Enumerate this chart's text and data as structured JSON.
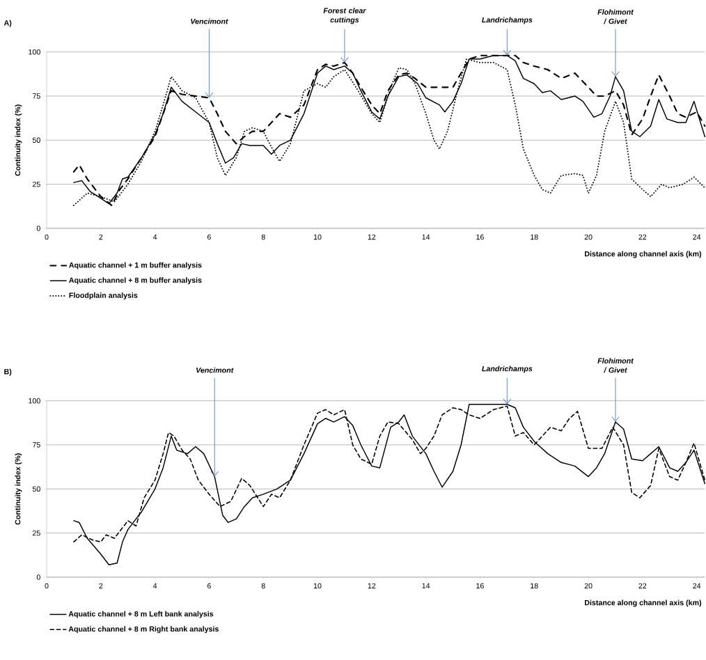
{
  "chart_data": [
    {
      "type": "line",
      "title": "A)",
      "xlabel": "Distance along channel axis (km)",
      "ylabel": "Continuity index (%)",
      "xlim": [
        0,
        24.3
      ],
      "ylim": [
        0,
        100
      ],
      "xticks": [
        0,
        2,
        4,
        6,
        8,
        10,
        12,
        14,
        16,
        18,
        20,
        22,
        24
      ],
      "yticks": [
        0,
        25,
        50,
        75,
        100
      ],
      "grid": "y",
      "legend": "bottom left",
      "marker": "none",
      "series": [
        {
          "name": "Aquatic channel + 1 m buffer analysis",
          "color": "#000000",
          "line_style": "dashdot",
          "x": [
            1,
            1.2,
            1.5,
            2,
            2.4,
            2.7,
            3,
            3.5,
            4,
            4.3,
            4.6,
            5,
            5.5,
            6,
            6.3,
            6.6,
            7,
            7.3,
            7.6,
            8,
            8.3,
            8.6,
            9,
            9.5,
            10,
            10.3,
            10.6,
            11,
            11.3,
            11.6,
            12,
            12.3,
            12.6,
            13,
            13.3,
            13.6,
            14,
            14.5,
            15,
            15.3,
            15.6,
            16,
            16.5,
            17,
            17.3,
            17.6,
            18,
            18.5,
            19,
            19.5,
            20,
            20.3,
            20.6,
            21,
            21.3,
            21.6,
            22,
            22.3,
            22.6,
            23,
            23.3,
            23.6,
            24,
            24.3
          ],
          "values": [
            32,
            36,
            28,
            18,
            13,
            22,
            28,
            40,
            52,
            65,
            78,
            76,
            75,
            74,
            65,
            55,
            48,
            52,
            55,
            55,
            60,
            65,
            63,
            70,
            90,
            93,
            92,
            94,
            88,
            80,
            70,
            65,
            78,
            87,
            88,
            85,
            80,
            80,
            80,
            88,
            96,
            98,
            98,
            98,
            98,
            94,
            92,
            90,
            85,
            88,
            80,
            75,
            75,
            78,
            70,
            53,
            62,
            75,
            87,
            75,
            65,
            63,
            66,
            58
          ]
        },
        {
          "name": "Aquatic channel + 8 m buffer analysis",
          "color": "#000000",
          "line_style": "solid",
          "x": [
            1,
            1.3,
            1.6,
            2,
            2.3,
            2.6,
            2.8,
            3,
            3.5,
            4,
            4.3,
            4.6,
            5,
            5.5,
            6,
            6.3,
            6.6,
            6.9,
            7.2,
            7.5,
            8,
            8.3,
            8.6,
            9,
            9.5,
            10,
            10.3,
            10.6,
            11,
            11.3,
            11.6,
            12,
            12.3,
            12.6,
            13,
            13.3,
            13.7,
            14,
            14.5,
            14.7,
            15,
            15.3,
            15.6,
            16,
            16.5,
            17,
            17.3,
            17.6,
            18,
            18.3,
            18.6,
            19,
            19.5,
            19.8,
            20.2,
            20.5,
            20.8,
            21,
            21.3,
            21.6,
            21.9,
            22.3,
            22.6,
            22.9,
            23.3,
            23.6,
            23.9,
            24.1,
            24.3
          ],
          "values": [
            26,
            27,
            21,
            17,
            14,
            20,
            28,
            29,
            40,
            53,
            65,
            80,
            72,
            66,
            60,
            48,
            37,
            40,
            48,
            47,
            47,
            42,
            47,
            50,
            65,
            88,
            92,
            90,
            92,
            88,
            78,
            66,
            62,
            75,
            86,
            87,
            82,
            74,
            70,
            66,
            72,
            82,
            96,
            96,
            98,
            98,
            95,
            85,
            82,
            77,
            78,
            73,
            75,
            72,
            63,
            65,
            75,
            86,
            78,
            55,
            52,
            58,
            73,
            62,
            60,
            60,
            72,
            62,
            52
          ]
        },
        {
          "name": "Floodplain analysis",
          "color": "#000000",
          "line_style": "dotted",
          "x": [
            1,
            1.5,
            2,
            2.5,
            3,
            3.5,
            4,
            4.3,
            4.6,
            5,
            5.5,
            6,
            6.3,
            6.6,
            7,
            7.3,
            7.6,
            8,
            8.3,
            8.6,
            9,
            9.5,
            10,
            10.3,
            10.6,
            11,
            11.5,
            12,
            12.3,
            12.7,
            13,
            13.3,
            13.6,
            14,
            14.3,
            14.5,
            14.8,
            15.2,
            15.5,
            16,
            16.5,
            17,
            17.3,
            17.6,
            18,
            18.3,
            18.6,
            19,
            19.5,
            19.8,
            20,
            20.3,
            20.6,
            21,
            21.3,
            21.6,
            22,
            22.3,
            22.7,
            23,
            23.5,
            23.9,
            24.3
          ],
          "values": [
            13,
            20,
            18,
            15,
            25,
            38,
            55,
            70,
            86,
            78,
            74,
            60,
            40,
            30,
            40,
            55,
            57,
            55,
            46,
            38,
            48,
            78,
            82,
            80,
            86,
            90,
            78,
            65,
            60,
            80,
            91,
            90,
            82,
            65,
            50,
            45,
            55,
            80,
            96,
            94,
            94,
            90,
            70,
            45,
            30,
            22,
            20,
            30,
            31,
            30,
            20,
            30,
            55,
            72,
            60,
            28,
            22,
            18,
            25,
            23,
            25,
            29,
            23
          ]
        }
      ],
      "annotations": [
        {
          "text": "Vencimont",
          "x": 6,
          "y": 74
        },
        {
          "text": "Forest clear cuttings",
          "x": 11,
          "y": 94
        },
        {
          "text": "Landrichamps",
          "x": 17,
          "y": 98
        },
        {
          "text": "Flohimont / Givet",
          "x": 21,
          "y": 86
        }
      ]
    },
    {
      "type": "line",
      "title": "B)",
      "xlabel": "Distance along channel axis (km)",
      "ylabel": "Continuity index (%)",
      "xlim": [
        0,
        24.3
      ],
      "ylim": [
        0,
        100
      ],
      "xticks": [
        0,
        2,
        4,
        6,
        8,
        10,
        12,
        14,
        16,
        18,
        20,
        22,
        24
      ],
      "yticks": [
        0,
        25,
        50,
        75,
        100
      ],
      "grid": "y",
      "legend": "bottom left",
      "marker": "none",
      "series": [
        {
          "name": "Aquatic channel + 8 m Left bank analysis",
          "color": "#000000",
          "line_style": "solid",
          "x": [
            1,
            1.2,
            1.5,
            2,
            2.3,
            2.6,
            2.8,
            3,
            3.5,
            4,
            4.3,
            4.6,
            4.8,
            5.2,
            5.5,
            5.8,
            6.2,
            6.5,
            6.7,
            7,
            7.3,
            7.6,
            8,
            8.5,
            9,
            9.5,
            10,
            10.3,
            10.6,
            11,
            11.3,
            11.6,
            12,
            12.3,
            12.7,
            13,
            13.2,
            13.5,
            14,
            14.3,
            14.6,
            15,
            15.3,
            15.6,
            16,
            16.5,
            17,
            17.3,
            17.6,
            18,
            18.5,
            19,
            19.5,
            20,
            20.3,
            20.6,
            21,
            21.3,
            21.6,
            22,
            22.3,
            22.6,
            23,
            23.3,
            23.6,
            23.9,
            24.3
          ],
          "values": [
            32,
            31,
            22,
            13,
            7,
            8,
            20,
            27,
            37,
            50,
            62,
            80,
            72,
            70,
            74,
            70,
            57,
            35,
            31,
            33,
            40,
            45,
            47,
            50,
            55,
            70,
            87,
            90,
            88,
            91,
            86,
            75,
            63,
            62,
            85,
            88,
            92,
            80,
            70,
            60,
            51,
            60,
            75,
            98,
            98,
            98,
            98,
            96,
            85,
            77,
            70,
            65,
            63,
            57,
            62,
            70,
            88,
            84,
            67,
            66,
            70,
            74,
            62,
            60,
            65,
            72,
            53
          ]
        },
        {
          "name": "Aquatic channel + 8 m Right bank analysis",
          "color": "#000000",
          "line_style": "dashed",
          "x": [
            1,
            1.3,
            1.7,
            2,
            2.2,
            2.5,
            3,
            3.3,
            3.6,
            4,
            4.3,
            4.5,
            4.7,
            5,
            5.3,
            5.6,
            6,
            6.4,
            6.8,
            7.2,
            7.5,
            8,
            8.3,
            8.6,
            9,
            9.5,
            10,
            10.3,
            10.6,
            11,
            11.3,
            11.6,
            12,
            12.3,
            12.6,
            13,
            13.5,
            13.8,
            14,
            14.3,
            14.6,
            15,
            15.3,
            15.6,
            16,
            16.5,
            17,
            17.3,
            17.6,
            18,
            18.3,
            18.6,
            19,
            19.3,
            19.6,
            20,
            20.5,
            20.9,
            21.3,
            21.6,
            21.9,
            22.3,
            22.6,
            23,
            23.3,
            23.6,
            23.9,
            24.3
          ],
          "values": [
            20,
            24,
            21,
            20,
            24,
            22,
            32,
            29,
            45,
            55,
            70,
            82,
            80,
            72,
            67,
            55,
            47,
            40,
            43,
            56,
            52,
            40,
            47,
            45,
            55,
            75,
            93,
            95,
            92,
            95,
            75,
            67,
            64,
            80,
            88,
            87,
            78,
            70,
            73,
            80,
            92,
            96,
            95,
            92,
            90,
            95,
            97,
            80,
            82,
            75,
            80,
            85,
            83,
            90,
            94,
            73,
            73,
            85,
            75,
            48,
            45,
            52,
            73,
            57,
            55,
            65,
            76,
            55
          ]
        }
      ],
      "annotations": [
        {
          "text": "Vencimont",
          "x": 6.2,
          "y": 57
        },
        {
          "text": "Landrichamps",
          "x": 17,
          "y": 98
        },
        {
          "text": "Flohimont / Givet",
          "x": 21,
          "y": 88
        }
      ]
    }
  ]
}
